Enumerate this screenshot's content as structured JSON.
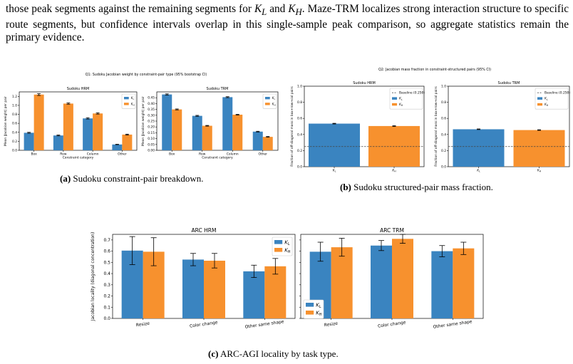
{
  "paragraph": {
    "line1_a": "those peak segments against the remaining segments for ",
    "line1_kl": "K",
    "line1_kl_sub": "L",
    "line1_and": " and ",
    "line1_kh": "K",
    "line1_kh_sub": "H",
    "line1_b": ". Maze-TRM localizes strong",
    "line2": "interaction structure to specific route segments, but confidence intervals overlap in this single-sample",
    "line3": "peak comparison, so aggregate statistics remain the primary evidence."
  },
  "captions": {
    "a_label": "(a)",
    "a_text": " Sudoku constraint-pair breakdown.",
    "b_label": "(b)",
    "b_text": " Sudoku structured-pair mass fraction.",
    "c_label": "(c)",
    "c_text": " ARC-AGI locality by task type."
  },
  "colors": {
    "kl": "#3a84c0",
    "kh": "#f7912e"
  },
  "chart_data": [
    {
      "id": "q1",
      "type": "bar",
      "suptitle": "Q1: Sudoku Jacobian weight by constraint-pair type (95% bootstrap CI)",
      "panels": [
        {
          "title": "Sudoku HRM",
          "xlabel": "Constraint category",
          "ylabel": "Mean |Jacobian weight| per pair",
          "categories": [
            "Box",
            "Row",
            "Column",
            "Other"
          ],
          "ylim": [
            0,
            1.3
          ],
          "yticks": [
            "0.0",
            "0.2",
            "0.4",
            "0.6",
            "0.8",
            "1.0",
            "1.2"
          ],
          "series": [
            {
              "name": "K_L",
              "values": [
                0.39,
                0.33,
                0.71,
                0.13
              ],
              "err": [
                0.01,
                0.01,
                0.015,
                0.005
              ]
            },
            {
              "name": "K_H",
              "values": [
                1.24,
                1.04,
                0.82,
                0.35
              ],
              "err": [
                0.02,
                0.015,
                0.015,
                0.01
              ]
            }
          ]
        },
        {
          "title": "Sudoku TRM",
          "xlabel": "Constraint category",
          "ylabel": "Mean |Jacobian weight| per pair",
          "categories": [
            "Box",
            "Row",
            "Column",
            "Other"
          ],
          "ylim": [
            0,
            0.5
          ],
          "yticks": [
            "0.00",
            "0.05",
            "0.10",
            "0.15",
            "0.20",
            "0.25",
            "0.30",
            "0.35",
            "0.40",
            "0.45"
          ],
          "series": [
            {
              "name": "K_L",
              "values": [
                0.478,
                0.295,
                0.455,
                0.16
              ],
              "err": [
                0.005,
                0.004,
                0.004,
                0.003
              ]
            },
            {
              "name": "K_H",
              "values": [
                0.35,
                0.21,
                0.305,
                0.115
              ],
              "err": [
                0.004,
                0.003,
                0.003,
                0.003
              ]
            }
          ]
        }
      ]
    },
    {
      "id": "q2",
      "type": "bar",
      "suptitle": "Q2: Jacobian mass fraction in constraint-structured pairs (95% CI)",
      "baseline": 0.25,
      "baseline_label": "Baseline (0.250)",
      "panels": [
        {
          "title": "Sudoku HRM",
          "ylabel": "Fraction of off-diagonal mass in box+row+col pairs",
          "categories": [
            "K_L",
            "K_H"
          ],
          "ylim": [
            0,
            1.0
          ],
          "yticks": [
            "0.0",
            "0.2",
            "0.4",
            "0.6",
            "0.8",
            "1.0"
          ],
          "values": [
            0.535,
            0.505
          ],
          "err": [
            0.004,
            0.004
          ]
        },
        {
          "title": "Sudoku TRM",
          "ylabel": "Fraction of off-diagonal mass in box+row+col pairs",
          "categories": [
            "K_L",
            "K_H"
          ],
          "ylim": [
            0,
            1.0
          ],
          "yticks": [
            "0.0",
            "0.2",
            "0.4",
            "0.6",
            "0.8",
            "1.0"
          ],
          "values": [
            0.465,
            0.455
          ],
          "err": [
            0.004,
            0.004
          ]
        }
      ]
    },
    {
      "id": "q3",
      "type": "bar",
      "panels": [
        {
          "title": "ARC HRM",
          "ylabel": "Jacobian locality (diagonal concentration)",
          "categories": [
            "Resize",
            "Color change",
            "Other same shape"
          ],
          "ylim": [
            0,
            0.75
          ],
          "yticks": [
            "0.0",
            "0.1",
            "0.2",
            "0.3",
            "0.4",
            "0.5",
            "0.6",
            "0.7"
          ],
          "legend": "top-right",
          "series": [
            {
              "name": "K_L",
              "values": [
                0.605,
                0.525,
                0.42
              ],
              "err": [
                0.125,
                0.055,
                0.055
              ]
            },
            {
              "name": "K_H",
              "values": [
                0.595,
                0.515,
                0.465
              ],
              "err": [
                0.125,
                0.065,
                0.07
              ]
            }
          ]
        },
        {
          "title": "ARC TRM",
          "categories": [
            "Resize",
            "Color change",
            "Other same shape"
          ],
          "ylim": [
            0,
            0.75
          ],
          "legend": "bottom-left",
          "series": [
            {
              "name": "K_L",
              "values": [
                0.595,
                0.65,
                0.6
              ],
              "err": [
                0.085,
                0.045,
                0.05
              ]
            },
            {
              "name": "K_H",
              "values": [
                0.635,
                0.71,
                0.625
              ],
              "err": [
                0.08,
                0.04,
                0.055
              ]
            }
          ]
        }
      ]
    }
  ]
}
